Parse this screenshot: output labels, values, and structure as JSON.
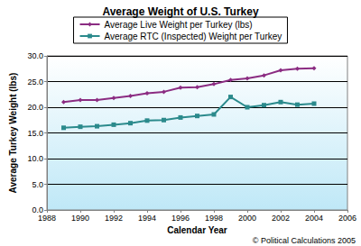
{
  "chart_data": {
    "type": "line",
    "title": "Average Weight of U.S. Turkey",
    "x_label": "Calendar Year",
    "y_label": "Average Turkey Weight (lbs)",
    "annotation": "© Political Calculations 2005",
    "x": [
      1989,
      1990,
      1991,
      1992,
      1993,
      1994,
      1995,
      1996,
      1997,
      1998,
      1999,
      2000,
      2001,
      2002,
      2003,
      2004
    ],
    "series": [
      {
        "name": "Average Live Weight per Turkey (lbs)",
        "color": "#8b2c82",
        "marker": "diamond",
        "values": [
          21.0,
          21.4,
          21.4,
          21.8,
          22.2,
          22.7,
          23.0,
          23.8,
          23.9,
          24.5,
          25.3,
          25.6,
          26.2,
          27.2,
          27.5,
          27.6
        ]
      },
      {
        "name": "Average RTC (Inspected) Weight per Turkey",
        "color": "#2b8a8c",
        "marker": "rect",
        "values": [
          16.0,
          16.2,
          16.3,
          16.6,
          16.9,
          17.4,
          17.5,
          18.0,
          18.3,
          18.6,
          22.0,
          20.0,
          20.4,
          21.0,
          20.5,
          20.7
        ]
      }
    ],
    "xlim": [
      1988,
      2006
    ],
    "xticks": [
      1988,
      1990,
      1992,
      1994,
      1996,
      1998,
      2000,
      2002,
      2004,
      2006
    ],
    "ylim": [
      0,
      30
    ],
    "yticks": [
      {
        "value": 0,
        "label": "0.0"
      },
      {
        "value": 5,
        "label": "5.0"
      },
      {
        "value": 10,
        "label": "10.0"
      },
      {
        "value": 15,
        "label": "15.0"
      },
      {
        "value": 20,
        "label": "20.0"
      },
      {
        "value": 25,
        "label": "25.0"
      },
      {
        "value": 30,
        "label": "30.0"
      }
    ],
    "grid": true,
    "legend": "top"
  }
}
